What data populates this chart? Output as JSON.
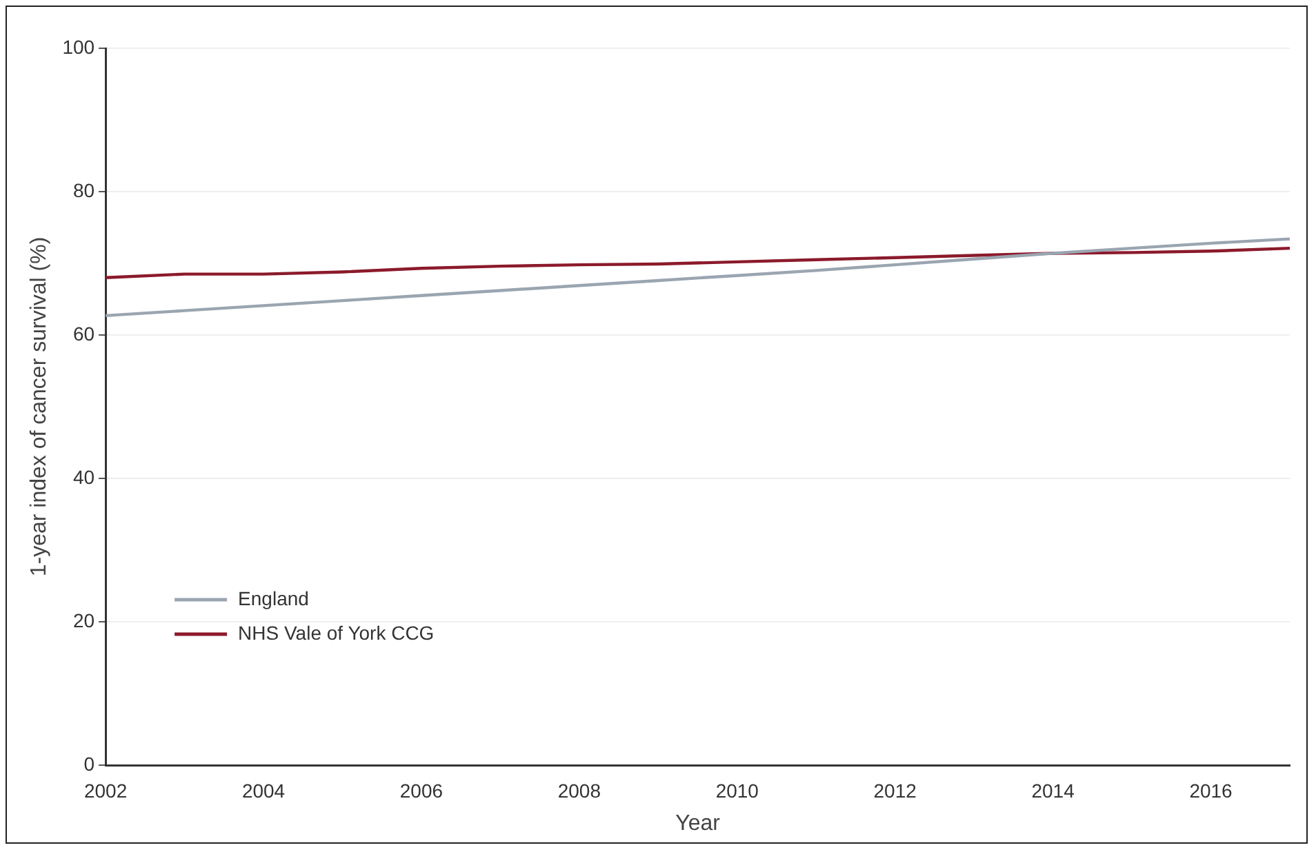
{
  "chart_data": {
    "type": "line",
    "xlabel": "Year",
    "ylabel": "1-year index of cancer survival (%)",
    "x": [
      2002,
      2003,
      2004,
      2005,
      2006,
      2007,
      2008,
      2009,
      2010,
      2011,
      2012,
      2013,
      2014,
      2015,
      2016,
      2017
    ],
    "series": [
      {
        "name": "England",
        "color": "#9aa5b1",
        "values": [
          62.7,
          63.4,
          64.1,
          64.8,
          65.5,
          66.2,
          66.9,
          67.6,
          68.3,
          69.0,
          69.8,
          70.6,
          71.4,
          72.1,
          72.8,
          73.4
        ]
      },
      {
        "name": "NHS Vale of York CCG",
        "color": "#8b1a2b",
        "values": [
          68.0,
          68.5,
          68.5,
          68.8,
          69.3,
          69.6,
          69.8,
          69.9,
          70.2,
          70.5,
          70.8,
          71.1,
          71.4,
          71.5,
          71.7,
          72.1
        ]
      }
    ],
    "xlim": [
      2002,
      2017
    ],
    "xticks": [
      2002,
      2004,
      2006,
      2008,
      2010,
      2012,
      2014,
      2016
    ],
    "ylim": [
      0,
      100
    ],
    "yticks": [
      0,
      20,
      40,
      60,
      80,
      100
    ],
    "grid": "y",
    "legend": "bottom left",
    "marker": "none",
    "line_style": "solid"
  }
}
